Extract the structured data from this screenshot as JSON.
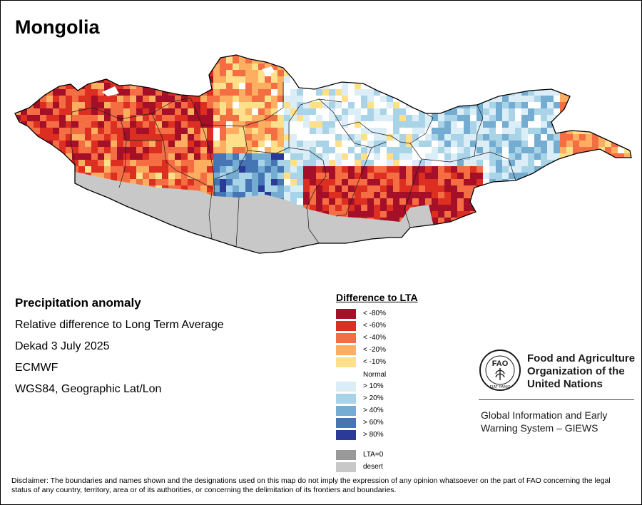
{
  "title": "Mongolia",
  "info": {
    "heading": "Precipitation anomaly",
    "subtitle": "Relative difference to Long Term Average",
    "period": "Dekad 3 July 2025",
    "source": "ECMWF",
    "projection": "WGS84, Geographic Lat/Lon"
  },
  "legend": {
    "title": "Difference to LTA",
    "dry": [
      {
        "label": "< -80%",
        "color": "#a50f27"
      },
      {
        "label": "< -60%",
        "color": "#dc2f22"
      },
      {
        "label": "< -40%",
        "color": "#f46d43"
      },
      {
        "label": "< -20%",
        "color": "#fdae61"
      },
      {
        "label": "< -10%",
        "color": "#fee08b"
      }
    ],
    "normal_label": "Normal",
    "wet": [
      {
        "label": "> 10%",
        "color": "#dbeef7"
      },
      {
        "label": "> 20%",
        "color": "#a9d4e8"
      },
      {
        "label": "> 40%",
        "color": "#74add1"
      },
      {
        "label": "> 60%",
        "color": "#4575b4"
      },
      {
        "label": "> 80%",
        "color": "#2b3a98"
      }
    ],
    "lta_zero": {
      "label": "LTA=0",
      "color": "#999999"
    },
    "desert": {
      "label": "desert",
      "color": "#c8c8c8"
    }
  },
  "organization": {
    "line1": "Food and Agriculture",
    "line2": "Organization of the",
    "line3": "United Nations",
    "logo_text": "FAO",
    "logo_motto": "FIAT PANIS",
    "system_line1": "Global Information and Early",
    "system_line2": "Warning System – GIEWS"
  },
  "disclaimer": "Disclaimer: The boundaries and names shown and the designations used on this map do not imply the expression of any opinion whatsoever on the part of FAO concerning the legal status of any country, territory, area or of its authorities, or concerning the delimitation of its frontiers and boundaries."
}
